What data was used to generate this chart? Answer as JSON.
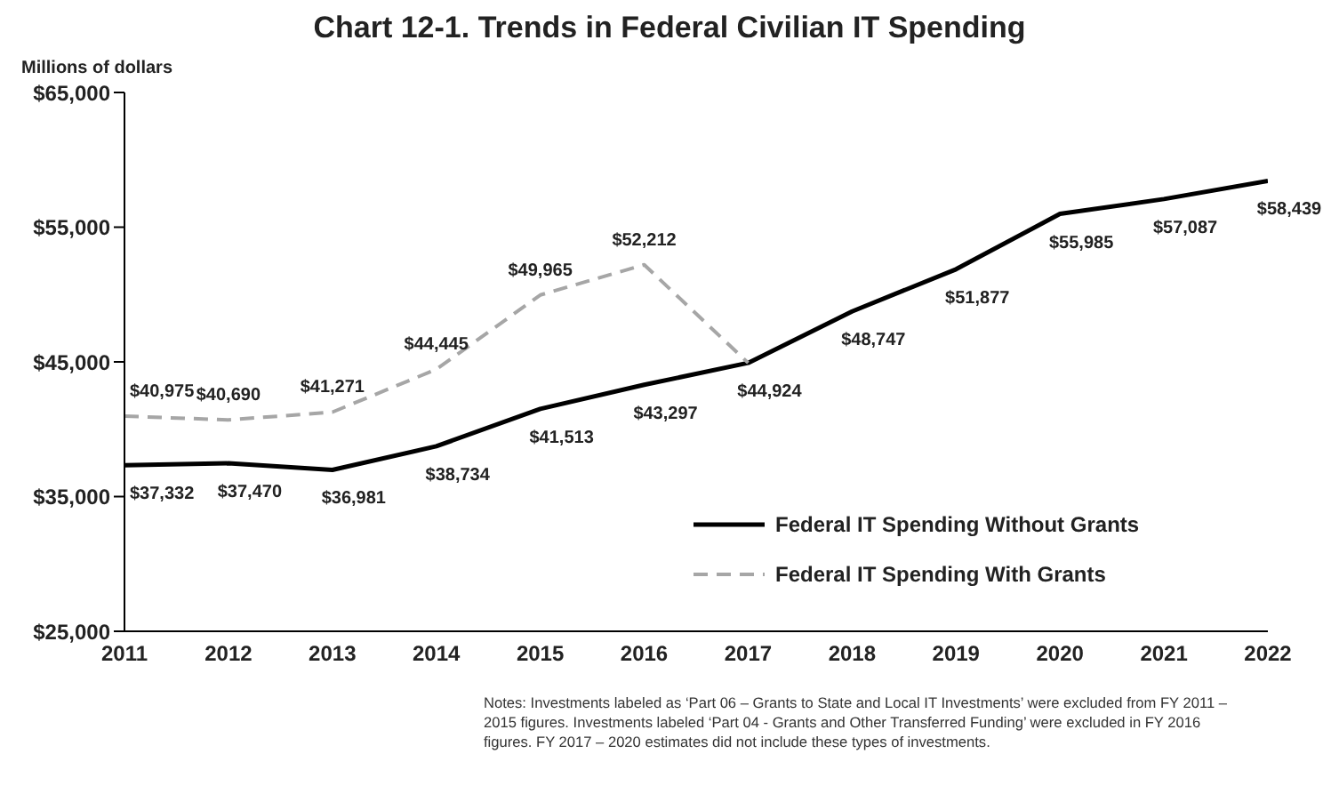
{
  "chart_data": {
    "type": "line",
    "title": "Chart 12-1.  Trends in Federal Civilian IT Spending",
    "ylabel": "Millions of dollars",
    "x": [
      2011,
      2012,
      2013,
      2014,
      2015,
      2016,
      2017,
      2018,
      2019,
      2020,
      2021,
      2022
    ],
    "xlim": [
      2011,
      2022
    ],
    "xticks": [
      2011,
      2012,
      2013,
      2014,
      2015,
      2016,
      2017,
      2018,
      2019,
      2020,
      2021,
      2022
    ],
    "ylim": [
      25000,
      65000
    ],
    "yticks": [
      {
        "value": 25000,
        "label": "$25,000"
      },
      {
        "value": 35000,
        "label": "$35,000"
      },
      {
        "value": 45000,
        "label": "$45,000"
      },
      {
        "value": 55000,
        "label": "$55,000"
      },
      {
        "value": 65000,
        "label": "$65,000"
      }
    ],
    "series": [
      {
        "name": "Federal IT Spending Without Grants",
        "color": "#000000",
        "line_style": "solid",
        "values": [
          37332,
          37470,
          36981,
          38734,
          41513,
          43297,
          44924,
          48747,
          51877,
          55985,
          57087,
          58439
        ],
        "value_labels": [
          "$37,332",
          "$37,470",
          "$36,981",
          "$38,734",
          "$41,513",
          "$43,297",
          "$44,924",
          "$48,747",
          "$51,877",
          "$55,985",
          "$57,087",
          "$58,439"
        ]
      },
      {
        "name": "Federal IT Spending With Grants",
        "color": "#a6a6a6",
        "line_style": "dashed",
        "values": [
          40975,
          40690,
          41271,
          44445,
          49965,
          52212,
          44924,
          null,
          null,
          null,
          null,
          null
        ],
        "value_labels": [
          "$40,975",
          "$40,690",
          "$41,271",
          "$44,445",
          "$49,965",
          "$52,212",
          null,
          null,
          null,
          null,
          null,
          null
        ]
      }
    ],
    "marker": "none",
    "grid": false,
    "legend": "right",
    "annotations": [
      "Notes:  Investments labeled as ‘Part 06 – Grants to State and Local IT Investments’ were excluded from FY 2011 – 2015 figures. Investments labeled ‘Part 04 - Grants and Other Transferred Funding’ were excluded in FY 2016 figures. FY 2017 – 2020 estimates did not include these types of investments."
    ]
  }
}
